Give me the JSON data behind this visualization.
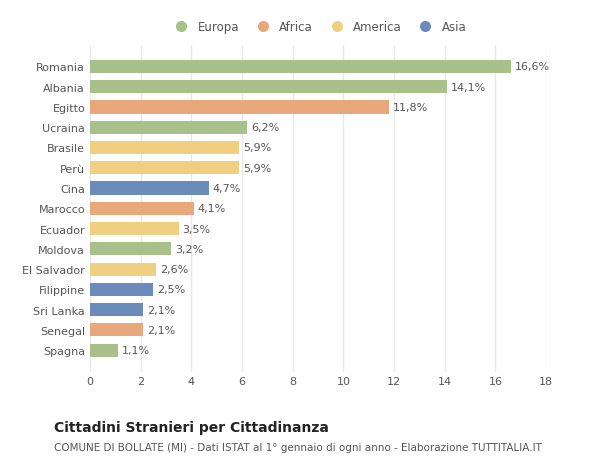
{
  "categories": [
    "Spagna",
    "Senegal",
    "Sri Lanka",
    "Filippine",
    "El Salvador",
    "Moldova",
    "Ecuador",
    "Marocco",
    "Cina",
    "Perù",
    "Brasile",
    "Ucraina",
    "Egitto",
    "Albania",
    "Romania"
  ],
  "values": [
    1.1,
    2.1,
    2.1,
    2.5,
    2.6,
    3.2,
    3.5,
    4.1,
    4.7,
    5.9,
    5.9,
    6.2,
    11.8,
    14.1,
    16.6
  ],
  "labels": [
    "1,1%",
    "2,1%",
    "2,1%",
    "2,5%",
    "2,6%",
    "3,2%",
    "3,5%",
    "4,1%",
    "4,7%",
    "5,9%",
    "5,9%",
    "6,2%",
    "11,8%",
    "14,1%",
    "16,6%"
  ],
  "continents": [
    "Europa",
    "Africa",
    "Asia",
    "Asia",
    "America",
    "Europa",
    "America",
    "Africa",
    "Asia",
    "America",
    "America",
    "Europa",
    "Africa",
    "Europa",
    "Europa"
  ],
  "continent_colors": {
    "Europa": "#a8c08a",
    "Africa": "#e8a87c",
    "America": "#f0d080",
    "Asia": "#6b8cba"
  },
  "legend_items": [
    {
      "label": "Europa",
      "color": "#a8c08a"
    },
    {
      "label": "Africa",
      "color": "#e8a87c"
    },
    {
      "label": "America",
      "color": "#f0d080"
    },
    {
      "label": "Asia",
      "color": "#6b8cba"
    }
  ],
  "xlim": [
    0,
    18
  ],
  "xticks": [
    0,
    2,
    4,
    6,
    8,
    10,
    12,
    14,
    16,
    18
  ],
  "title": "Cittadini Stranieri per Cittadinanza",
  "subtitle": "COMUNE DI BOLLATE (MI) - Dati ISTAT al 1° gennaio di ogni anno - Elaborazione TUTTITALIA.IT",
  "background_color": "#ffffff",
  "grid_color": "#e8e8e8",
  "bar_height": 0.65,
  "label_fontsize": 8,
  "tick_fontsize": 8,
  "title_fontsize": 10,
  "subtitle_fontsize": 7.5
}
